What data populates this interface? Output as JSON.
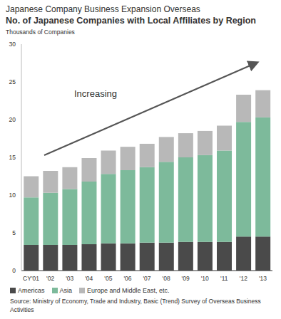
{
  "chart_data": {
    "type": "bar",
    "subtitle": "Japanese Company Business Expansion Overseas",
    "title": "No. of Japanese Companies with Local Affiliates by Region",
    "y_label": "Thousands of Companies",
    "annotation": "Increasing",
    "source": "Source: Ministry of Economy, Trade and Industry, Basic (Trend) Survey of Overseas Business Activities",
    "categories": [
      "CY'01",
      "'02",
      "'03",
      "'04",
      "'05",
      "'06",
      "'07",
      "'08",
      "'09",
      "'10",
      "'11",
      "'12",
      "'13"
    ],
    "series": [
      {
        "name": "Americas",
        "color": "#4a4a4a",
        "values": [
          3.4,
          3.4,
          3.4,
          3.5,
          3.6,
          3.6,
          3.7,
          3.7,
          3.8,
          3.8,
          3.8,
          4.5,
          4.5
        ]
      },
      {
        "name": "Asia",
        "color": "#7dba9b",
        "values": [
          6.3,
          6.9,
          7.4,
          8.3,
          9.2,
          9.7,
          10.0,
          10.7,
          11.2,
          11.5,
          12.1,
          15.2,
          15.8
        ]
      },
      {
        "name": "Europe and Middle East, etc.",
        "color": "#b8b8b8",
        "values": [
          2.8,
          2.9,
          2.9,
          3.1,
          3.1,
          3.1,
          3.1,
          3.3,
          3.2,
          3.2,
          3.3,
          3.6,
          3.6
        ]
      }
    ],
    "ylim": [
      0,
      30
    ],
    "yticks": [
      0,
      5,
      10,
      15,
      20,
      25,
      30
    ],
    "stacked": true,
    "grid": false,
    "legend": "bottom"
  }
}
